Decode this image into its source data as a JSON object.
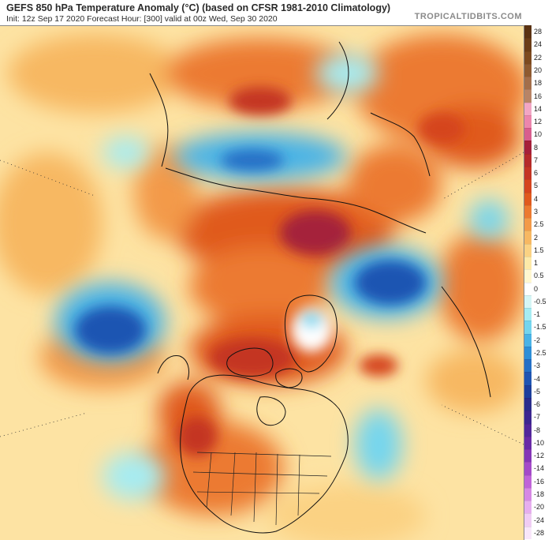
{
  "header": {
    "title": "GEFS 850 hPa Temperature Anomaly (°C) (based on CFSR 1981-2010 Climatology)",
    "subtitle": "Init: 12z Sep 17 2020   Forecast Hour: [300]   valid at 00z Wed, Sep 30 2020",
    "brand": "TROPICALTIDBITS.COM"
  },
  "colorbar": {
    "levels": [
      {
        "label": "28",
        "color": "#5a3212"
      },
      {
        "label": "24",
        "color": "#6b3d17"
      },
      {
        "label": "22",
        "color": "#7d4a1f"
      },
      {
        "label": "20",
        "color": "#8e5a30"
      },
      {
        "label": "18",
        "color": "#a36e4a"
      },
      {
        "label": "16",
        "color": "#b88466"
      },
      {
        "label": "14",
        "color": "#f2a6c4"
      },
      {
        "label": "12",
        "color": "#ec86ad"
      },
      {
        "label": "10",
        "color": "#d85e8e"
      },
      {
        "label": "8",
        "color": "#a5203a"
      },
      {
        "label": "7",
        "color": "#b52a2a"
      },
      {
        "label": "6",
        "color": "#c43524"
      },
      {
        "label": "5",
        "color": "#d5451f"
      },
      {
        "label": "4",
        "color": "#e05a1e"
      },
      {
        "label": "3",
        "color": "#ec7a30"
      },
      {
        "label": "2.5",
        "color": "#f39a48"
      },
      {
        "label": "2",
        "color": "#f7b862"
      },
      {
        "label": "1.5",
        "color": "#fbd283"
      },
      {
        "label": "1",
        "color": "#fde9a8"
      },
      {
        "label": "0.5",
        "color": "#fff7d0"
      },
      {
        "label": "0",
        "color": "#ffffff"
      },
      {
        "label": "-0.5",
        "color": "#d5f6f6"
      },
      {
        "label": "-1",
        "color": "#a6ecf2"
      },
      {
        "label": "-1.5",
        "color": "#74d5ee"
      },
      {
        "label": "-2",
        "color": "#49b3e6"
      },
      {
        "label": "-2.5",
        "color": "#2d8fd7"
      },
      {
        "label": "-3",
        "color": "#2570c6"
      },
      {
        "label": "-4",
        "color": "#1f55b2"
      },
      {
        "label": "-5",
        "color": "#1d3f9c"
      },
      {
        "label": "-6",
        "color": "#2a2d8c"
      },
      {
        "label": "-7",
        "color": "#3c2690"
      },
      {
        "label": "-8",
        "color": "#52269a"
      },
      {
        "label": "-10",
        "color": "#6a2aa6"
      },
      {
        "label": "-12",
        "color": "#8536b6"
      },
      {
        "label": "-14",
        "color": "#a44ac8"
      },
      {
        "label": "-16",
        "color": "#c064d8"
      },
      {
        "label": "-18",
        "color": "#d688e4"
      },
      {
        "label": "-20",
        "color": "#e6aeee"
      },
      {
        "label": "-24",
        "color": "#f0ccf4"
      },
      {
        "label": "-28",
        "color": "#f8e6fa"
      }
    ]
  }
}
